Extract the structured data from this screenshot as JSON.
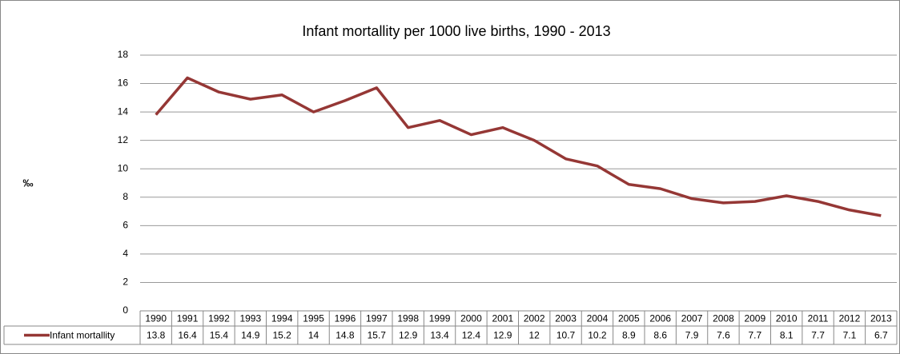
{
  "chart_data": {
    "type": "line",
    "title": "Infant mortallity per 1000 live births, 1990 - 2013",
    "y_label": "‰",
    "categories": [
      "1990",
      "1991",
      "1992",
      "1993",
      "1994",
      "1995",
      "1996",
      "1997",
      "1998",
      "1999",
      "2000",
      "2001",
      "2002",
      "2003",
      "2004",
      "2005",
      "2006",
      "2007",
      "2008",
      "2009",
      "2010",
      "2011",
      "2012",
      "2013"
    ],
    "series": [
      {
        "name": "Infant mortallity",
        "color": "#953735",
        "values": [
          13.8,
          16.4,
          15.4,
          14.9,
          15.2,
          14,
          14.8,
          15.7,
          12.9,
          13.4,
          12.4,
          12.9,
          12,
          10.7,
          10.2,
          8.9,
          8.6,
          7.9,
          7.6,
          7.7,
          8.1,
          7.7,
          7.1,
          6.7
        ]
      }
    ],
    "ylim": [
      0,
      18
    ],
    "yticks": [
      0,
      2,
      4,
      6,
      8,
      10,
      12,
      14,
      16,
      18
    ],
    "grid": true
  }
}
